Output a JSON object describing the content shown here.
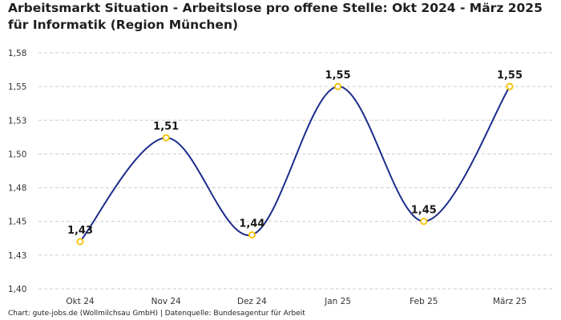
{
  "title": "Arbeitsmarkt Situation - Arbeitslose pro offene Stelle: Okt 2024 - März 2025 für Informatik (Region München)",
  "source": "Chart: gute-jobs.de (Wollmilchsau GmbH) | Datenquelle: Bundesagentur für Arbeit",
  "colors": {
    "line": "#1c2c8c",
    "marker_stroke": "#f2c200",
    "marker_fill": "#ffffff",
    "grid": "#cccccc"
  },
  "chart_data": {
    "type": "line",
    "title": "Arbeitsmarkt Situation - Arbeitslose pro offene Stelle: Okt 2024 - März 2025 für Informatik (Region München)",
    "xlabel": "",
    "ylabel": "",
    "categories": [
      "Okt 24",
      "Nov 24",
      "Dez 24",
      "Jan 25",
      "Feb 25",
      "März 25"
    ],
    "series": [
      {
        "values": [
          1.435,
          1.512,
          1.44,
          1.55,
          1.45,
          1.55
        ]
      }
    ],
    "data_labels": [
      "1,43",
      "1,51",
      "1,44",
      "1,55",
      "1,45",
      "1,55"
    ],
    "ylim": [
      1.4,
      1.575
    ],
    "yticks": [
      1.4,
      1.425,
      1.45,
      1.475,
      1.5,
      1.525,
      1.55,
      1.575
    ],
    "ytick_labels": [
      "1,40",
      "1,43",
      "1,45",
      "1,48",
      "1,50",
      "1,53",
      "1,55",
      "1,58"
    ],
    "grid": true,
    "smooth": true
  }
}
